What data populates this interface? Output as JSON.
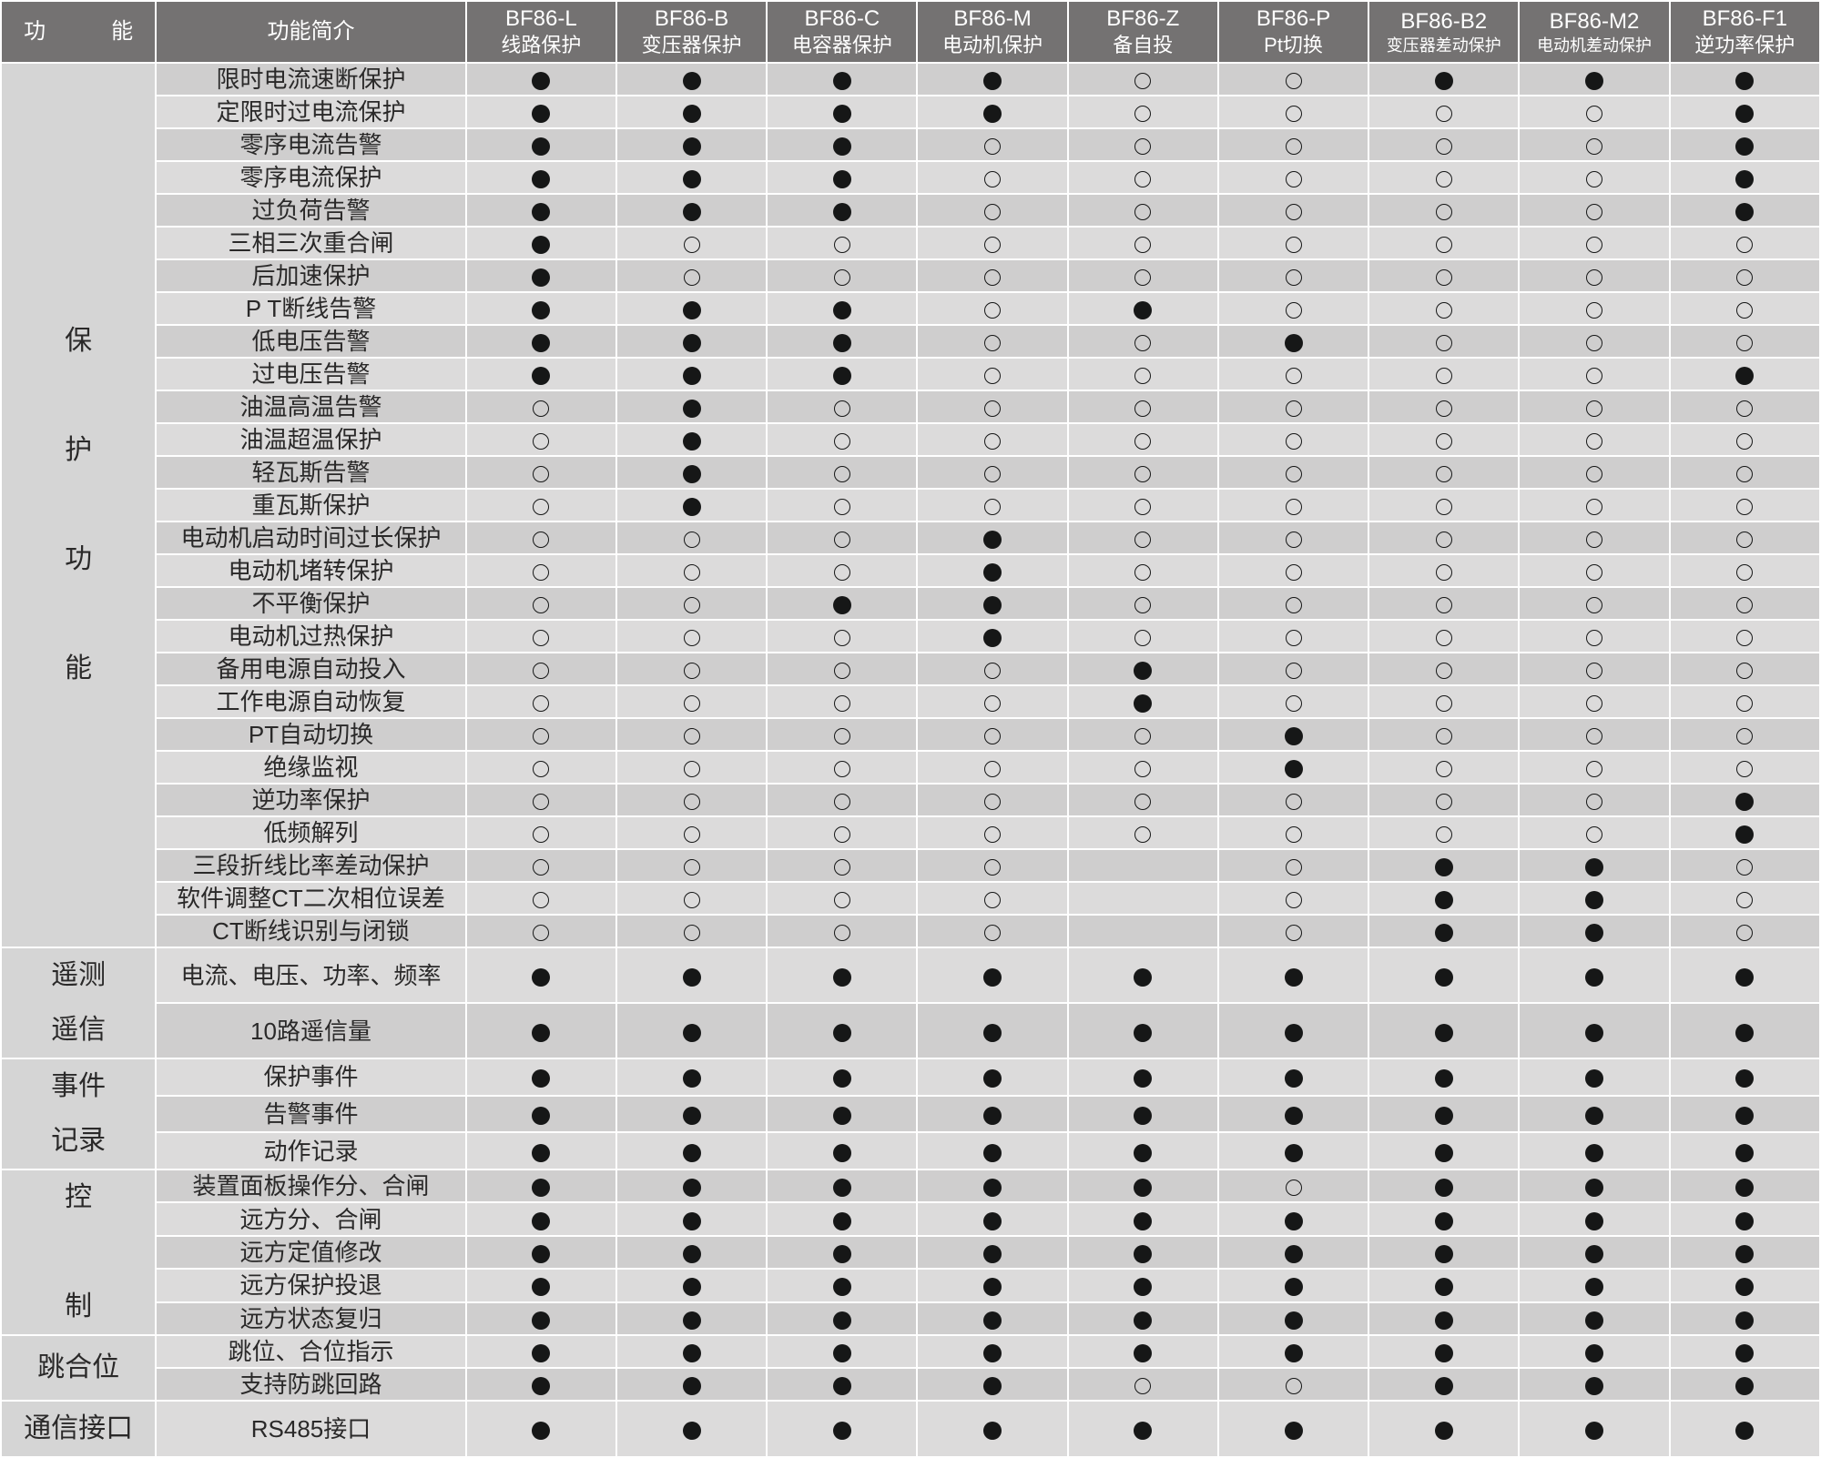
{
  "type": "feature-matrix-table",
  "colors": {
    "header_bg": "#747272",
    "header_text": "#ffffff",
    "border": "#ffffff",
    "row_even": "#cfcece",
    "row_odd": "#dcdbdb",
    "category_bg": "#d5d5d5",
    "text": "#2a2929",
    "dot": "#161717"
  },
  "fonts": {
    "header_size_pt": 18,
    "header_sub_size_pt": 16,
    "body_size_pt": 19,
    "category_size_pt": 22
  },
  "legend": {
    "filled": "●",
    "empty": "○",
    "blank": ""
  },
  "header": {
    "col_func": "功　能",
    "col_brief": "功能简介",
    "models": [
      {
        "code": "BF86-L",
        "desc": "线路保护",
        "small": false
      },
      {
        "code": "BF86-B",
        "desc": "变压器保护",
        "small": false
      },
      {
        "code": "BF86-C",
        "desc": "电容器保护",
        "small": false
      },
      {
        "code": "BF86-M",
        "desc": "电动机保护",
        "small": false
      },
      {
        "code": "BF86-Z",
        "desc": "备自投",
        "small": false
      },
      {
        "code": "BF86-P",
        "desc": "Pt切换",
        "small": false
      },
      {
        "code": "BF86-B2",
        "desc": "变压器差动保护",
        "small": true
      },
      {
        "code": "BF86-M2",
        "desc": "电动机差动保护",
        "small": true
      },
      {
        "code": "BF86-F1",
        "desc": "逆功率保护",
        "small": false
      }
    ]
  },
  "categories": [
    {
      "name": "保护功能",
      "label_vertical": "保\n\n护\n\n功\n\n能",
      "rows": [
        {
          "brief": "限时电流速断保护",
          "v": [
            "F",
            "F",
            "F",
            "F",
            "E",
            "E",
            "F",
            "F",
            "F"
          ]
        },
        {
          "brief": "定限时过电流保护",
          "v": [
            "F",
            "F",
            "F",
            "F",
            "E",
            "E",
            "E",
            "E",
            "F"
          ]
        },
        {
          "brief": "零序电流告警",
          "v": [
            "F",
            "F",
            "F",
            "E",
            "E",
            "E",
            "E",
            "E",
            "F"
          ]
        },
        {
          "brief": "零序电流保护",
          "v": [
            "F",
            "F",
            "F",
            "E",
            "E",
            "E",
            "E",
            "E",
            "F"
          ]
        },
        {
          "brief": "过负荷告警",
          "v": [
            "F",
            "F",
            "F",
            "E",
            "E",
            "E",
            "E",
            "E",
            "F"
          ]
        },
        {
          "brief": "三相三次重合闸",
          "v": [
            "F",
            "E",
            "E",
            "E",
            "E",
            "E",
            "E",
            "E",
            "E"
          ]
        },
        {
          "brief": "后加速保护",
          "v": [
            "F",
            "E",
            "E",
            "E",
            "E",
            "E",
            "E",
            "E",
            "E"
          ]
        },
        {
          "brief": "P T断线告警",
          "v": [
            "F",
            "F",
            "F",
            "E",
            "F",
            "E",
            "E",
            "E",
            "E"
          ]
        },
        {
          "brief": "低电压告警",
          "v": [
            "F",
            "F",
            "F",
            "E",
            "E",
            "F",
            "E",
            "E",
            "E"
          ]
        },
        {
          "brief": "过电压告警",
          "v": [
            "F",
            "F",
            "F",
            "E",
            "E",
            "E",
            "E",
            "E",
            "F"
          ]
        },
        {
          "brief": "油温高温告警",
          "v": [
            "E",
            "F",
            "E",
            "E",
            "E",
            "E",
            "E",
            "E",
            "E"
          ]
        },
        {
          "brief": "油温超温保护",
          "v": [
            "E",
            "F",
            "E",
            "E",
            "E",
            "E",
            "E",
            "E",
            "E"
          ]
        },
        {
          "brief": "轻瓦斯告警",
          "v": [
            "E",
            "F",
            "E",
            "E",
            "E",
            "E",
            "E",
            "E",
            "E"
          ]
        },
        {
          "brief": "重瓦斯保护",
          "v": [
            "E",
            "F",
            "E",
            "E",
            "E",
            "E",
            "E",
            "E",
            "E"
          ]
        },
        {
          "brief": "电动机启动时间过长保护",
          "v": [
            "E",
            "E",
            "E",
            "F",
            "E",
            "E",
            "E",
            "E",
            "E"
          ]
        },
        {
          "brief": "电动机堵转保护",
          "v": [
            "E",
            "E",
            "E",
            "F",
            "E",
            "E",
            "E",
            "E",
            "E"
          ]
        },
        {
          "brief": "不平衡保护",
          "v": [
            "E",
            "E",
            "F",
            "F",
            "E",
            "E",
            "E",
            "E",
            "E"
          ]
        },
        {
          "brief": "电动机过热保护",
          "v": [
            "E",
            "E",
            "E",
            "F",
            "E",
            "E",
            "E",
            "E",
            "E"
          ]
        },
        {
          "brief": "备用电源自动投入",
          "v": [
            "E",
            "E",
            "E",
            "E",
            "F",
            "E",
            "E",
            "E",
            "E"
          ]
        },
        {
          "brief": "工作电源自动恢复",
          "v": [
            "E",
            "E",
            "E",
            "E",
            "F",
            "E",
            "E",
            "E",
            "E"
          ]
        },
        {
          "brief": "PT自动切换",
          "v": [
            "E",
            "E",
            "E",
            "E",
            "E",
            "F",
            "E",
            "E",
            "E"
          ]
        },
        {
          "brief": "绝缘监视",
          "v": [
            "E",
            "E",
            "E",
            "E",
            "E",
            "F",
            "E",
            "E",
            "E"
          ]
        },
        {
          "brief": "逆功率保护",
          "v": [
            "E",
            "E",
            "E",
            "E",
            "E",
            "E",
            "E",
            "E",
            "F"
          ]
        },
        {
          "brief": "低频解列",
          "v": [
            "E",
            "E",
            "E",
            "E",
            "E",
            "E",
            "E",
            "E",
            "F"
          ]
        },
        {
          "brief": "三段折线比率差动保护",
          "v": [
            "E",
            "E",
            "E",
            "E",
            "B",
            "E",
            "F",
            "F",
            "E"
          ]
        },
        {
          "brief": "软件调整CT二次相位误差",
          "v": [
            "E",
            "E",
            "E",
            "E",
            "B",
            "E",
            "F",
            "F",
            "E"
          ]
        },
        {
          "brief": "CT断线识别与闭锁",
          "v": [
            "E",
            "E",
            "E",
            "E",
            "B",
            "E",
            "F",
            "F",
            "E"
          ]
        }
      ]
    },
    {
      "name": "遥测遥信",
      "label_vertical": "遥测\n遥信",
      "rows": [
        {
          "brief": "电流、电压、功率、频率",
          "v": [
            "F",
            "F",
            "F",
            "F",
            "F",
            "F",
            "F",
            "F",
            "F"
          ]
        },
        {
          "brief": "10路遥信量",
          "v": [
            "F",
            "F",
            "F",
            "F",
            "F",
            "F",
            "F",
            "F",
            "F"
          ]
        }
      ]
    },
    {
      "name": "事件记录",
      "label_vertical": "事件\n记录",
      "rows": [
        {
          "brief": "保护事件",
          "v": [
            "F",
            "F",
            "F",
            "F",
            "F",
            "F",
            "F",
            "F",
            "F"
          ]
        },
        {
          "brief": "告警事件",
          "v": [
            "F",
            "F",
            "F",
            "F",
            "F",
            "F",
            "F",
            "F",
            "F"
          ]
        },
        {
          "brief": "动作记录",
          "v": [
            "F",
            "F",
            "F",
            "F",
            "F",
            "F",
            "F",
            "F",
            "F"
          ]
        }
      ]
    },
    {
      "name": "控制",
      "label_vertical": "控\n\n制",
      "rows": [
        {
          "brief": "装置面板操作分、合闸",
          "v": [
            "F",
            "F",
            "F",
            "F",
            "F",
            "E",
            "F",
            "F",
            "F"
          ]
        },
        {
          "brief": "远方分、合闸",
          "v": [
            "F",
            "F",
            "F",
            "F",
            "F",
            "F",
            "F",
            "F",
            "F"
          ]
        },
        {
          "brief": "远方定值修改",
          "v": [
            "F",
            "F",
            "F",
            "F",
            "F",
            "F",
            "F",
            "F",
            "F"
          ]
        },
        {
          "brief": "远方保护投退",
          "v": [
            "F",
            "F",
            "F",
            "F",
            "F",
            "F",
            "F",
            "F",
            "F"
          ]
        },
        {
          "brief": "远方状态复归",
          "v": [
            "F",
            "F",
            "F",
            "F",
            "F",
            "F",
            "F",
            "F",
            "F"
          ]
        }
      ]
    },
    {
      "name": "跳合位",
      "label_vertical": "跳合位",
      "rows": [
        {
          "brief": "跳位、合位指示",
          "v": [
            "F",
            "F",
            "F",
            "F",
            "F",
            "F",
            "F",
            "F",
            "F"
          ]
        },
        {
          "brief": "支持防跳回路",
          "v": [
            "F",
            "F",
            "F",
            "F",
            "E",
            "E",
            "F",
            "F",
            "F"
          ]
        }
      ]
    },
    {
      "name": "通信接口",
      "label_vertical": "通信接口",
      "rows": [
        {
          "brief": "RS485接口",
          "v": [
            "F",
            "F",
            "F",
            "F",
            "F",
            "F",
            "F",
            "F",
            "F"
          ]
        }
      ]
    }
  ]
}
